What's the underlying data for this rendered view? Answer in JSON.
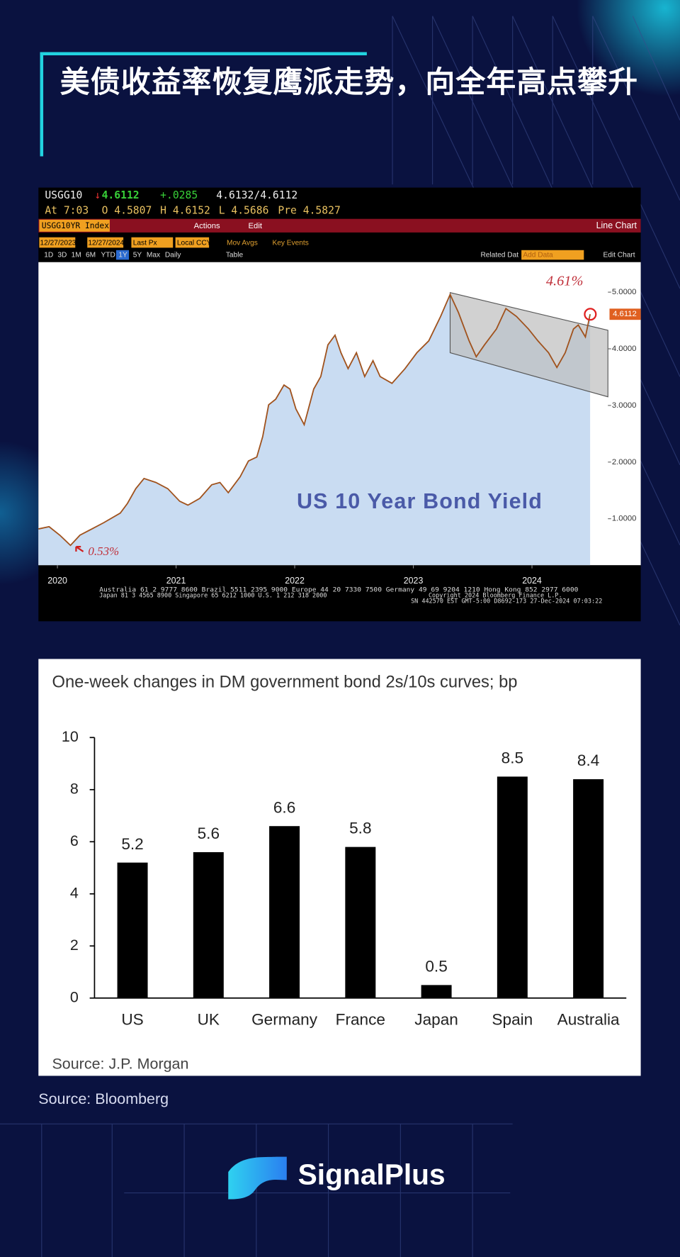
{
  "header": {
    "title": "美债收益率恢复鹰派走势，向全年高点攀升"
  },
  "terminal": {
    "ticker": "USGG10",
    "last": "4.6112",
    "change": "+.0285",
    "bid_ask": "4.6132/4.6112",
    "time": "At 7:03",
    "open": "O 4.5807",
    "high": "H 4.6152",
    "low": "L 4.5686",
    "pre": "Pre 4.5827",
    "security": "USGG10YR Index",
    "actions": "Actions",
    "edit": "Edit",
    "chart_kind": "Line Chart",
    "start_date": "12/27/2023",
    "end_date": "12/27/2024",
    "field": "Last Px",
    "currency": "Local CCY",
    "mov_avgs": "Mov Avgs",
    "key_events": "Key Events",
    "periods": [
      "1D",
      "3D",
      "1M",
      "6M",
      "YTD",
      "1Y",
      "5Y",
      "Max",
      "Daily"
    ],
    "table": "Table",
    "related": "Related Dat",
    "add_data": "Add Data",
    "edit_chart": "Edit Chart",
    "footer_lines": [
      "Australia 61 2 9777 8600 Brazil 5511 2395 9000 Europe 44 20 7330 7500 Germany 49 69 9204 1210 Hong Kong 852 2977 6000",
      "Japan 81 3 4565 8900 Singapore 65 6212 1000 U.S. 1 212 318 2000",
      "Copyright 2024 Bloomberg Finance L.P.",
      "SN 442570 EST GMT-5:00 D8692-173 27-Dec-2024 07:03:22"
    ]
  },
  "chart_data": [
    {
      "type": "line",
      "title": "US 10 Year Bond Yield",
      "color": "#a0521d",
      "area_color": "#c9dcf2",
      "x": [
        2020.34,
        2020.43,
        2020.52,
        2020.61,
        2020.69,
        2020.79,
        2020.89,
        2021.03,
        2021.09,
        2021.16,
        2021.23,
        2021.33,
        2021.43,
        2021.53,
        2021.6,
        2021.7,
        2021.8,
        2021.87,
        2021.94,
        2022.04,
        2022.11,
        2022.18,
        2022.23,
        2022.28,
        2022.34,
        2022.41,
        2022.46,
        2022.51,
        2022.58,
        2022.66,
        2022.72,
        2022.78,
        2022.84,
        2022.89,
        2022.95,
        2023.02,
        2023.09,
        2023.16,
        2023.22,
        2023.32,
        2023.43,
        2023.53,
        2023.63,
        2023.73,
        2023.81,
        2023.88,
        2023.97,
        2024.03,
        2024.1,
        2024.2,
        2024.28,
        2024.37,
        2024.47,
        2024.55,
        2024.64,
        2024.71,
        2024.78,
        2024.85,
        2024.89,
        2024.95,
        2024.99
      ],
      "values": [
        0.82,
        0.86,
        0.71,
        0.53,
        0.71,
        0.82,
        0.93,
        1.1,
        1.27,
        1.53,
        1.71,
        1.64,
        1.53,
        1.31,
        1.24,
        1.36,
        1.6,
        1.64,
        1.46,
        1.74,
        2.02,
        2.09,
        2.45,
        3.01,
        3.11,
        3.36,
        3.29,
        2.94,
        2.66,
        3.29,
        3.51,
        4.07,
        4.24,
        3.93,
        3.65,
        3.93,
        3.51,
        3.79,
        3.51,
        3.39,
        3.65,
        3.93,
        4.14,
        4.57,
        4.96,
        4.64,
        4.14,
        3.86,
        4.07,
        4.35,
        4.71,
        4.57,
        4.35,
        4.14,
        3.93,
        3.67,
        3.93,
        4.35,
        4.42,
        4.21,
        4.6112
      ],
      "xlim": [
        2020.34,
        2025.14
      ],
      "ylim": [
        0.18,
        5.53
      ],
      "xticks": [
        {
          "value": 2020.5,
          "label": "2020"
        },
        {
          "value": 2021.5,
          "label": "2021"
        },
        {
          "value": 2022.5,
          "label": "2022"
        },
        {
          "value": 2023.5,
          "label": "2023"
        },
        {
          "value": 2024.5,
          "label": "2024"
        }
      ],
      "yticks": [
        {
          "value": 1,
          "label": "1.0000"
        },
        {
          "value": 2,
          "label": "2.0000"
        },
        {
          "value": 3,
          "label": "3.0000"
        },
        {
          "value": 4,
          "label": "4.0000"
        },
        {
          "value": 5,
          "label": "5.0000"
        }
      ],
      "last_label": "4.6112",
      "annotations": [
        "4.61%",
        "0.53%"
      ]
    },
    {
      "type": "bar",
      "title": "One-week changes in DM government bond 2s/10s curves; bp",
      "categories": [
        "US",
        "UK",
        "Germany",
        "France",
        "Japan",
        "Spain",
        "Australia"
      ],
      "values": [
        5.2,
        5.6,
        6.6,
        5.8,
        0.5,
        8.5,
        8.4
      ],
      "color": "#000000",
      "ylim": [
        0,
        10
      ],
      "yticks": [
        0,
        2,
        4,
        6,
        8,
        10
      ],
      "source": "Source: J.P. Morgan"
    }
  ],
  "footer": {
    "source": "Source: Bloomberg",
    "brand": "SignalPlus"
  }
}
